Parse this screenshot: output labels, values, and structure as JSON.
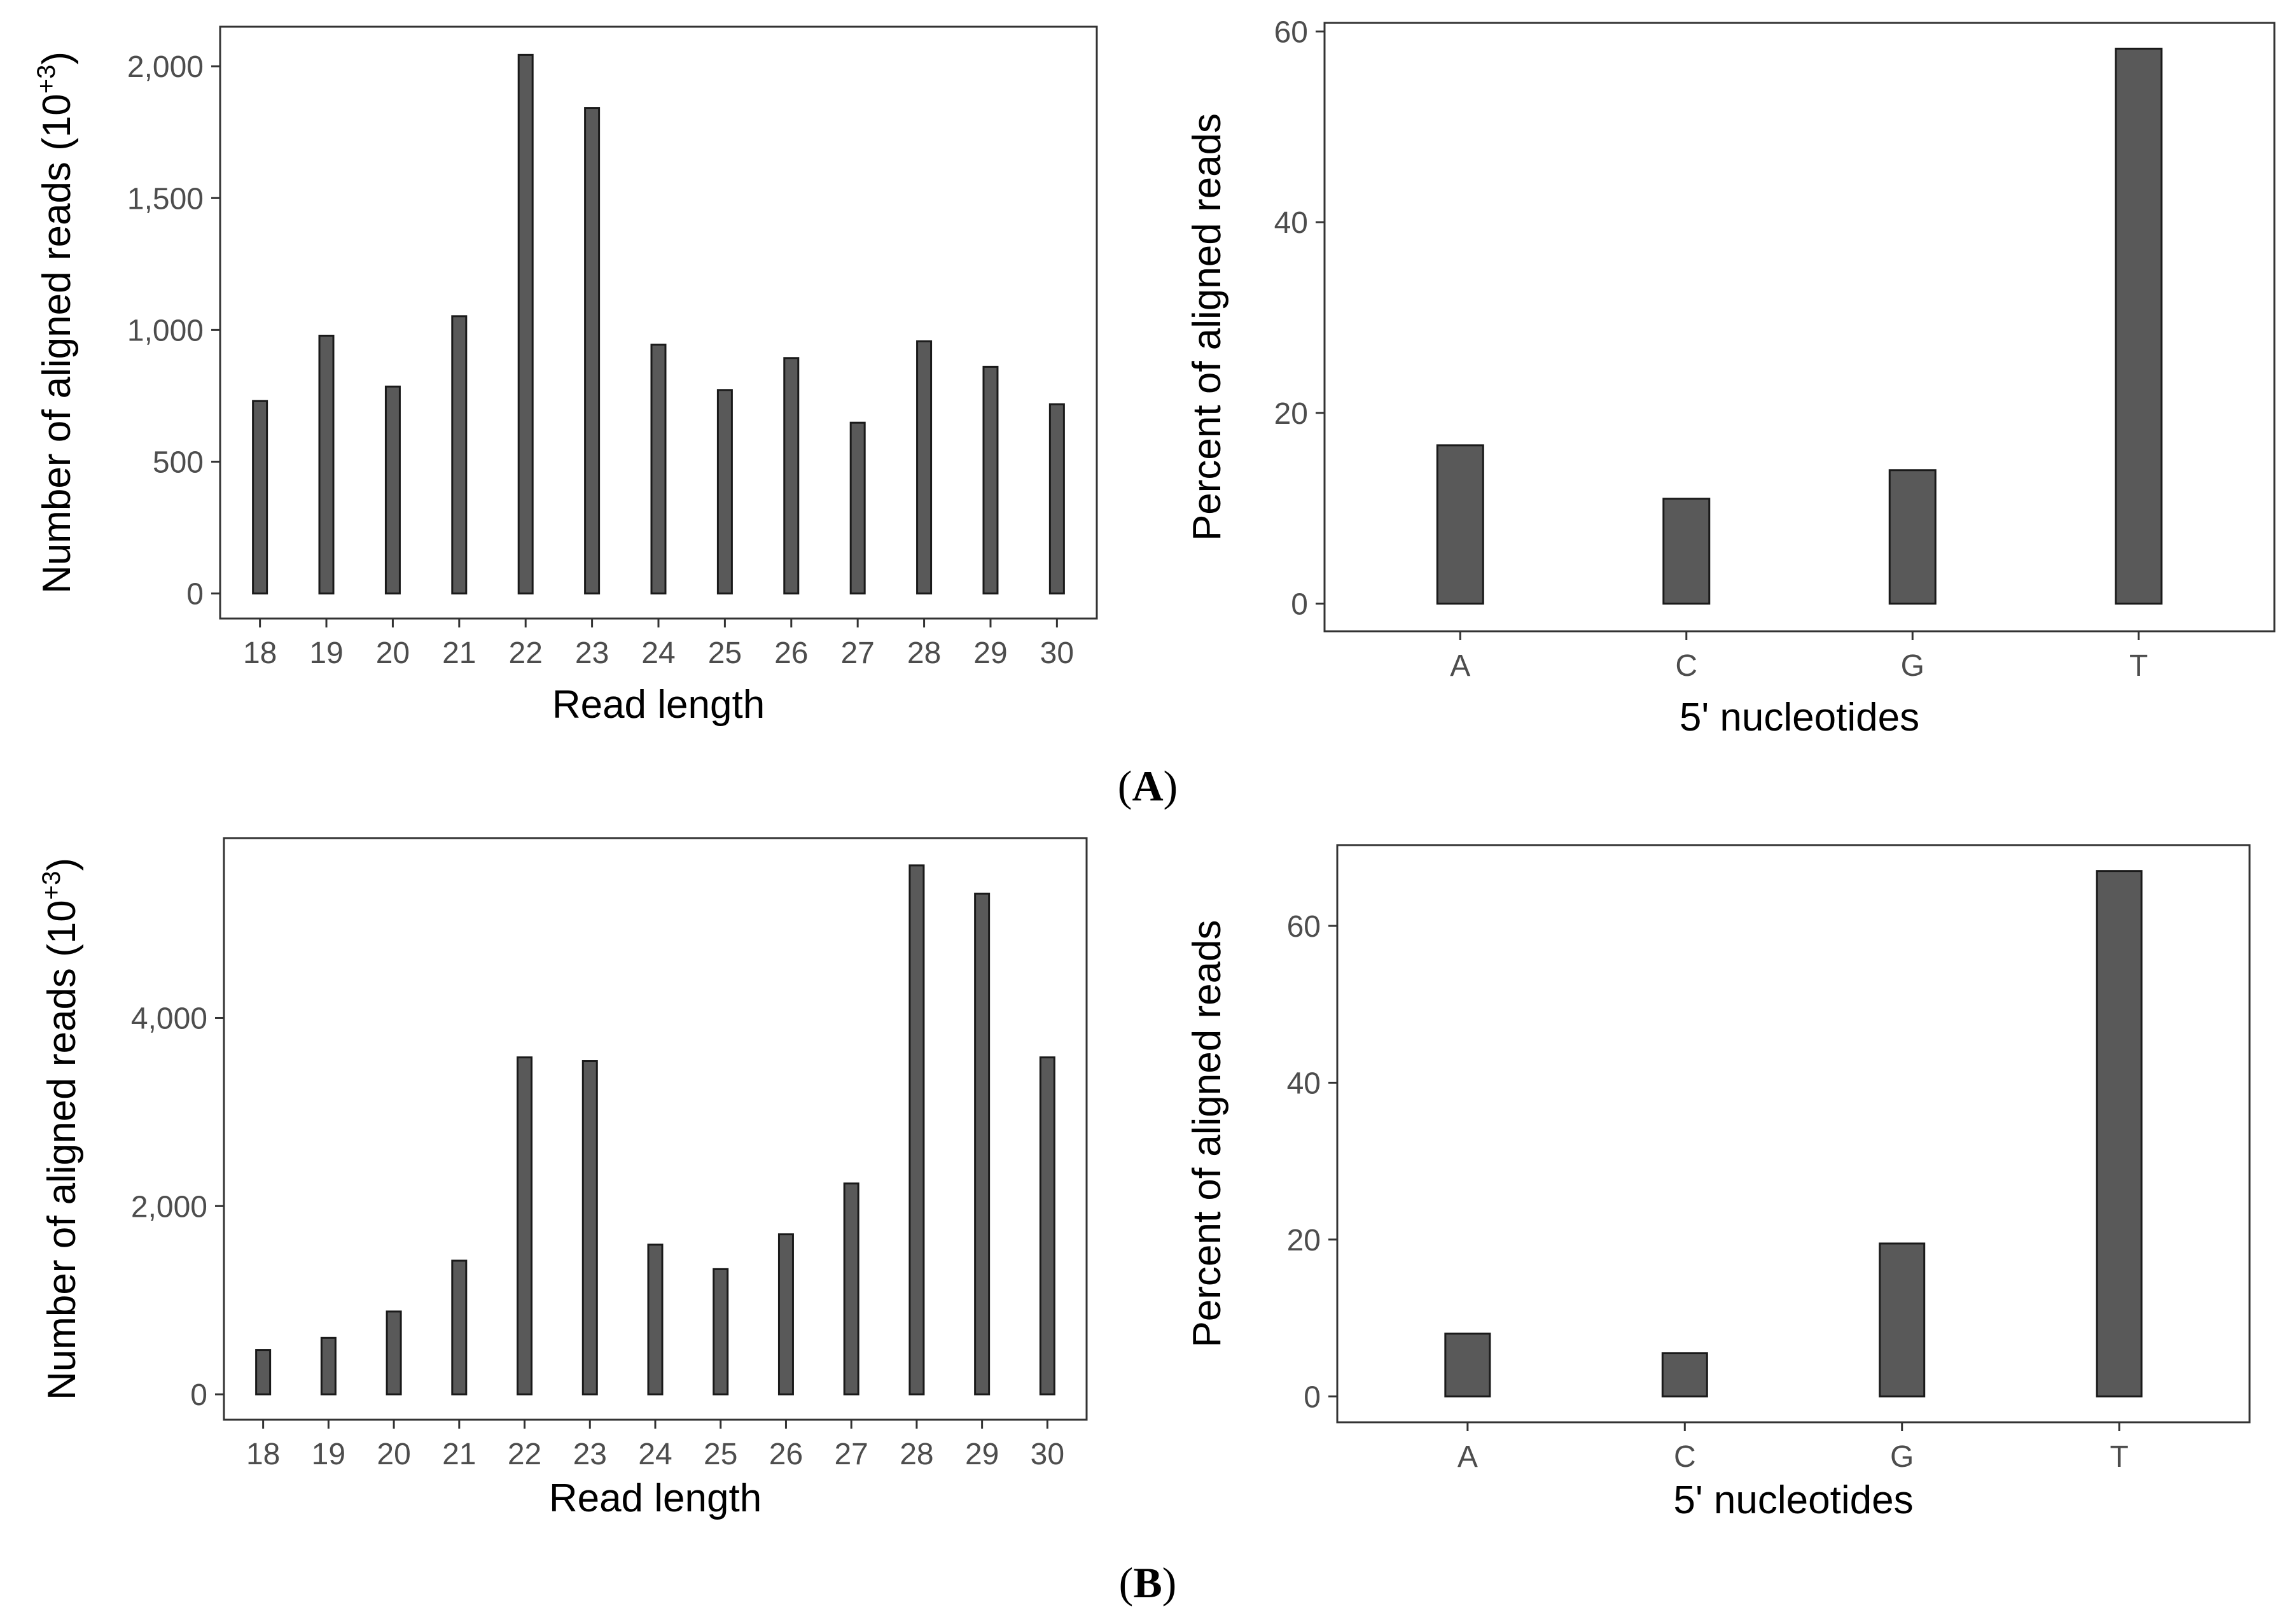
{
  "colors": {
    "bar_fill": "#595959",
    "bar_stroke": "#1a1a1a",
    "frame": "#333333",
    "tick_text": "#4d4d4d"
  },
  "panels": [
    {
      "letter": "A",
      "open": "(",
      "close": ")"
    },
    {
      "letter": "B",
      "open": "(",
      "close": ")"
    }
  ],
  "chart_data": [
    {
      "type": "bar",
      "panel": "A-left",
      "title": "",
      "xlabel": "Read length",
      "ylabel": "Number of aligned reads (10",
      "ylabel_sup": "+3",
      "ylabel_close": ")",
      "categories": [
        "18",
        "19",
        "20",
        "21",
        "22",
        "23",
        "24",
        "25",
        "26",
        "27",
        "28",
        "29",
        "30"
      ],
      "values": [
        730,
        978,
        785,
        1052,
        2043,
        1842,
        944,
        772,
        893,
        648,
        957,
        860,
        718
      ],
      "ylim": [
        -95,
        2150
      ],
      "yticks": [
        0,
        500,
        1000,
        1500,
        2000
      ],
      "ytick_labels": [
        "0",
        "500",
        "1,000",
        "1,500",
        "2,000"
      ],
      "grid": false
    },
    {
      "type": "bar",
      "panel": "A-right",
      "title": "",
      "xlabel": "5' nucleotides",
      "ylabel": "Percent of aligned reads",
      "categories": [
        "A",
        "C",
        "G",
        "T"
      ],
      "values": [
        16.6,
        11.0,
        14.0,
        58.2
      ],
      "ylim": [
        -2.9,
        60.9
      ],
      "yticks": [
        0,
        20,
        40,
        60
      ],
      "ytick_labels": [
        "0",
        "20",
        "40",
        "60"
      ],
      "grid": false
    },
    {
      "type": "bar",
      "panel": "B-left",
      "title": "",
      "xlabel": "Read length",
      "ylabel": "Number of aligned reads (10",
      "ylabel_sup": "+3",
      "ylabel_close": ")",
      "categories": [
        "18",
        "19",
        "20",
        "21",
        "22",
        "23",
        "24",
        "25",
        "26",
        "27",
        "28",
        "29",
        "30"
      ],
      "values": [
        470,
        600,
        880,
        1420,
        3580,
        3540,
        1590,
        1330,
        1700,
        2240,
        5620,
        5320,
        3580
      ],
      "ylim": [
        -270,
        5910
      ],
      "yticks": [
        0,
        2000,
        4000
      ],
      "ytick_labels": [
        "0",
        "2,000",
        "4,000"
      ],
      "grid": false
    },
    {
      "type": "bar",
      "panel": "B-right",
      "title": "",
      "xlabel": "5' nucleotides",
      "ylabel": "Percent of aligned reads",
      "categories": [
        "A",
        "C",
        "G",
        "T"
      ],
      "values": [
        8.0,
        5.5,
        19.5,
        67.0
      ],
      "ylim": [
        -3.3,
        70.3
      ],
      "yticks": [
        0,
        20,
        40,
        60
      ],
      "ytick_labels": [
        "0",
        "20",
        "40",
        "60"
      ],
      "grid": false
    }
  ]
}
